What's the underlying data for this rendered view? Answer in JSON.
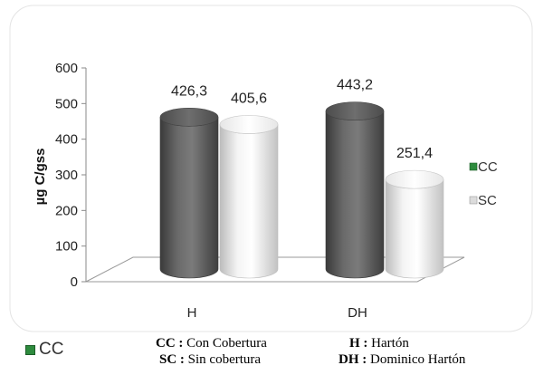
{
  "chart_data": {
    "type": "bar",
    "style": "3d-cylinder",
    "categories": [
      "H",
      "DH"
    ],
    "series": [
      {
        "name": "CC",
        "values": [
          426.3,
          443.2
        ],
        "labels": [
          "426,3",
          "443,2"
        ],
        "color": "#555555"
      },
      {
        "name": "SC",
        "values": [
          405.6,
          251.4
        ],
        "labels": [
          "405,6",
          "251,4"
        ],
        "color": "#e6e6e6"
      }
    ],
    "ylabel": "µg  C/gss",
    "xlabel": "",
    "ylim": [
      0,
      600
    ],
    "yticks": [
      "0",
      "100",
      "200",
      "300",
      "400",
      "500",
      "600"
    ],
    "grid": false,
    "legend_position": "right",
    "legend_colors": {
      "CC": "#2e8b3e",
      "SC": "#d9d9d9"
    }
  },
  "bottom_legend": {
    "label": "CC",
    "color": "#2e8b3e"
  },
  "notes": {
    "row1": {
      "left_key": "CC :",
      "left_value": " Con Cobertura",
      "right_key": "H :",
      "right_value": " Hartón"
    },
    "row2": {
      "left_key": "SC :",
      "left_value": " Sin cobertura",
      "right_key": "DH :",
      "right_value": " Dominico Hartón"
    }
  }
}
